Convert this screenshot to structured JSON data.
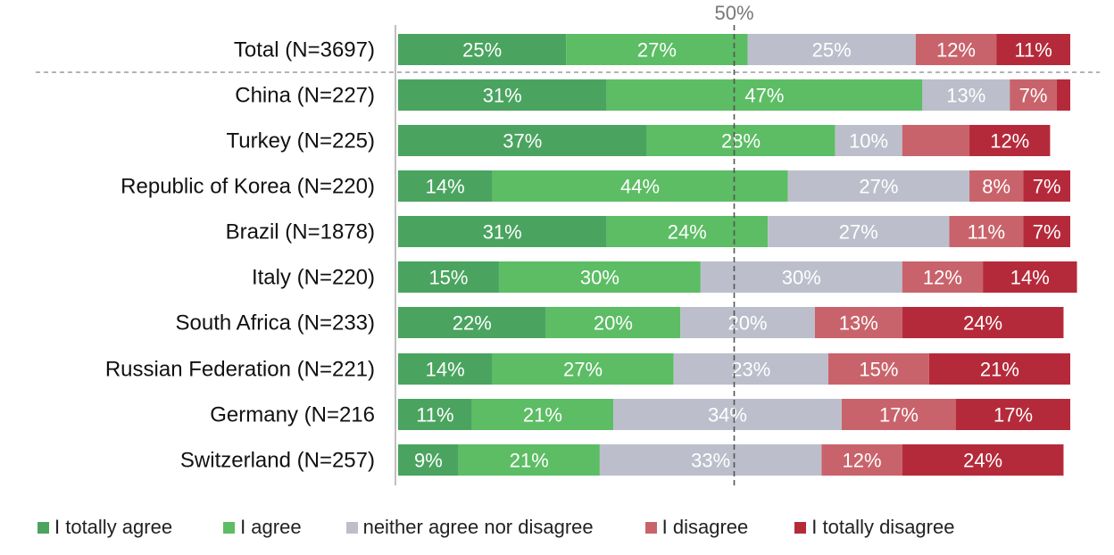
{
  "chart_data": {
    "type": "bar",
    "orientation": "horizontal",
    "stacked": true,
    "reference_line": {
      "value": 50,
      "label": "50%"
    },
    "categories": [
      "Total (N=3697)",
      "China (N=227)",
      "Turkey (N=225)",
      "Republic of Korea (N=220)",
      "Brazil (N=1878)",
      "Italy (N=220)",
      "South Africa (N=233)",
      "Russian Federation (N=221)",
      "Germany (N=216",
      "Switzerland (N=257)"
    ],
    "series": [
      {
        "name": "I totally agree",
        "color": "#4aa45f",
        "values": [
          25,
          31,
          37,
          14,
          31,
          15,
          22,
          14,
          11,
          9
        ]
      },
      {
        "name": "I agree",
        "color": "#5cbd64",
        "values": [
          27,
          47,
          28,
          44,
          24,
          30,
          20,
          27,
          21,
          21
        ]
      },
      {
        "name": "neither agree nor disagree",
        "color": "#bcbfcb",
        "values": [
          25,
          13,
          10,
          27,
          27,
          30,
          20,
          23,
          34,
          33
        ]
      },
      {
        "name": "I disagree",
        "color": "#c9636b",
        "values": [
          12,
          7,
          10,
          8,
          11,
          12,
          13,
          15,
          17,
          12
        ]
      },
      {
        "name": "I totally disagree",
        "color": "#b52a3a",
        "values": [
          11,
          2,
          12,
          7,
          7,
          14,
          24,
          21,
          17,
          24
        ]
      }
    ],
    "hidden_labels": [
      [
        1,
        4
      ],
      [
        2,
        3
      ]
    ],
    "xlim": [
      0,
      100
    ],
    "legend_position": "bottom",
    "grid": false
  }
}
